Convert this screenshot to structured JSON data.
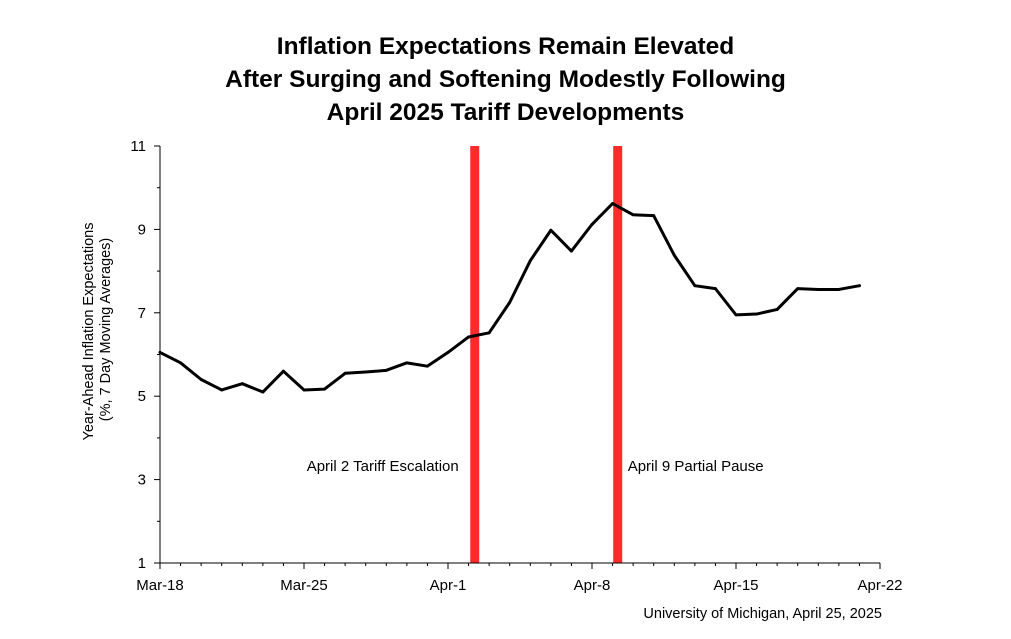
{
  "chart_data": {
    "type": "line",
    "title_lines": [
      "Inflation Expectations Remain Elevated",
      "After Surging and Softening Modestly Following",
      "April 2025 Tariff Developments"
    ],
    "ylabel_lines": [
      "Year-Ahead Inflation Expectations",
      "(%, 7 Day Moving Averages)"
    ],
    "xlabel": "",
    "x_start": "2025-03-18",
    "x_ticks": [
      "Mar-18",
      "Mar-25",
      "Apr-1",
      "Apr-8",
      "Apr-15",
      "Apr-22"
    ],
    "y_ticks": [
      1,
      3,
      5,
      7,
      9,
      11
    ],
    "ylim": [
      1,
      11
    ],
    "grid": false,
    "series": [
      {
        "values": [
          6.05,
          5.8,
          5.4,
          5.15,
          5.3,
          5.1,
          5.6,
          5.15,
          5.17,
          5.55,
          5.58,
          5.62,
          5.8,
          5.72,
          6.05,
          6.42,
          6.52,
          7.25,
          8.25,
          8.98,
          8.48,
          9.12,
          9.62,
          9.35,
          9.33,
          8.38,
          7.65,
          7.58,
          6.95,
          6.97,
          7.08,
          7.58,
          7.56,
          7.56,
          7.65
        ],
        "color": "#000000"
      }
    ],
    "events": [
      {
        "label": "April 2 Tariff Escalation",
        "x_offset_days": 15.3,
        "color": "#ff2a2a"
      },
      {
        "label": "April 9 Partial Pause",
        "x_offset_days": 22.25,
        "color": "#ff2a2a"
      }
    ],
    "source": "University of Michigan, April 25, 2025"
  }
}
